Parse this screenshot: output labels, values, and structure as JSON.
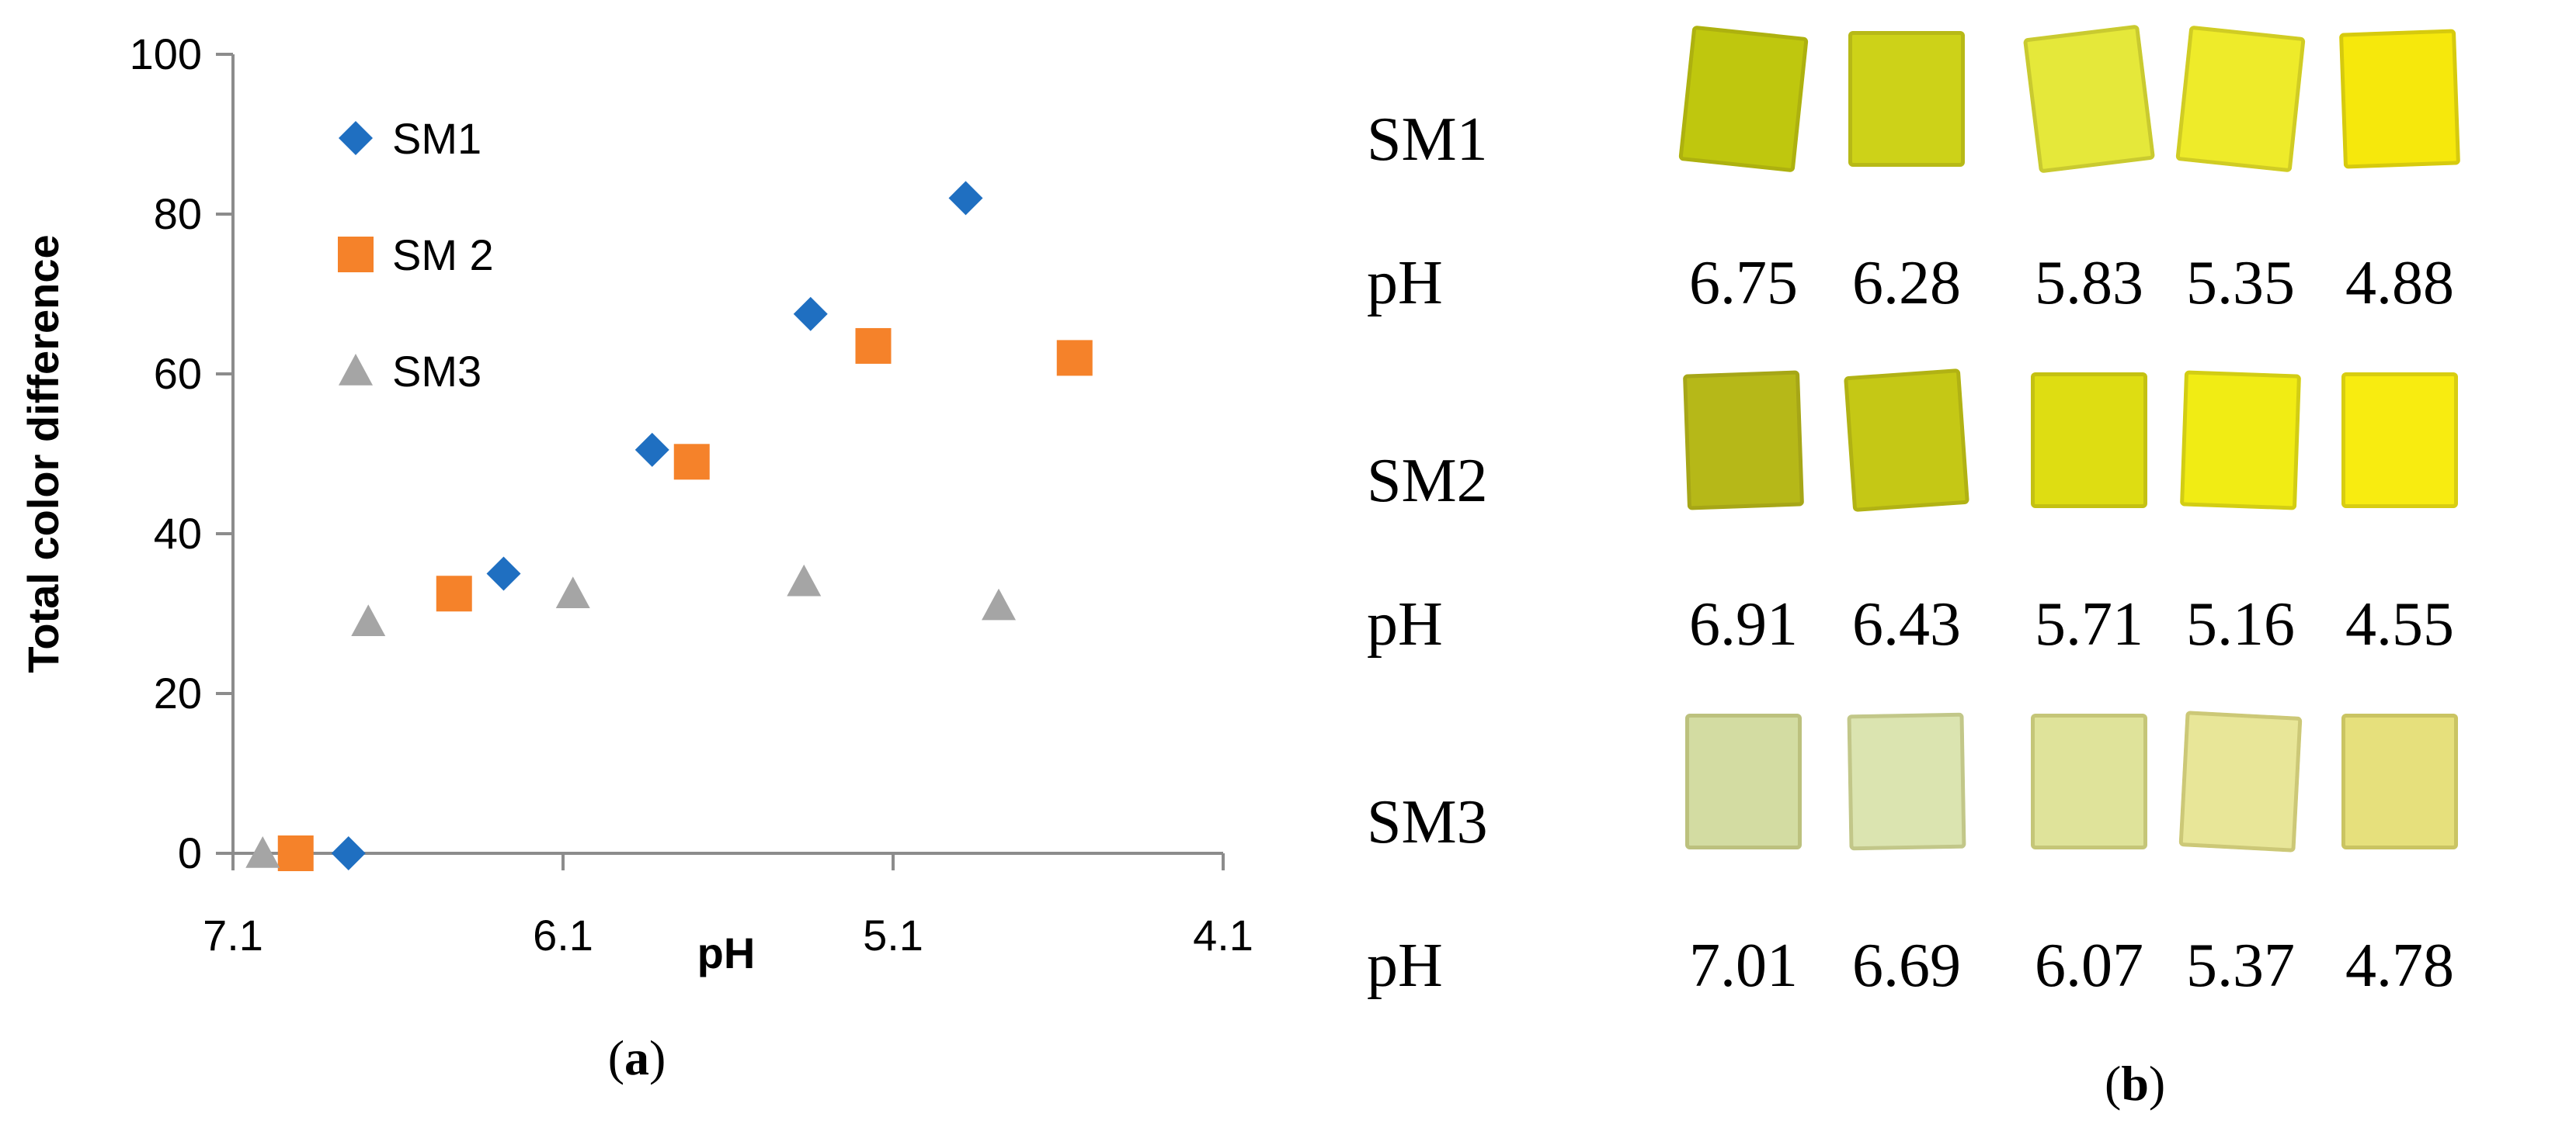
{
  "chart_data": {
    "type": "scatter",
    "title": "",
    "xlabel": "pH",
    "ylabel": "Total color difference",
    "xlim": [
      7.1,
      4.1
    ],
    "ylim": [
      0,
      100
    ],
    "x_reversed": true,
    "xticks": [
      "7.1",
      "6.1",
      "5.1",
      "4.1"
    ],
    "yticks": [
      "0",
      "20",
      "40",
      "60",
      "80",
      "100"
    ],
    "grid": false,
    "legend_position": "top-left",
    "series": [
      {
        "name": "SM1",
        "marker": "diamond",
        "color": "#1f6fc1",
        "x": [
          6.75,
          6.28,
          5.83,
          5.35,
          4.88
        ],
        "y": [
          0,
          35,
          50.5,
          67.5,
          82
        ]
      },
      {
        "name": "SM 2",
        "marker": "square",
        "color": "#f5822a",
        "x": [
          6.91,
          6.43,
          5.71,
          5.16,
          4.55
        ],
        "y": [
          0,
          32.5,
          49,
          63.5,
          62
        ]
      },
      {
        "name": "SM3",
        "marker": "triangle",
        "color": "#a5a5a5",
        "x": [
          7.01,
          6.69,
          6.07,
          5.37,
          4.78
        ],
        "y": [
          0,
          29,
          32.5,
          34,
          31
        ]
      }
    ]
  },
  "panel_a_caption": {
    "open": "(",
    "letter": "a",
    "close": ")"
  },
  "panel_b_caption": {
    "open": "(",
    "letter": "b",
    "close": ")"
  },
  "photo_panel": {
    "ph_label": "pH",
    "rows": [
      {
        "label": "SM1",
        "ph_values": [
          "6.75",
          "6.28",
          "5.83",
          "5.35",
          "4.88"
        ],
        "swatch_colors": [
          "#bfc70e",
          "#cdd218",
          "#e5e83a",
          "#eeeb2a",
          "#f6e80c"
        ]
      },
      {
        "label": "SM2",
        "ph_values": [
          "6.91",
          "6.43",
          "5.71",
          "5.16",
          "4.55"
        ],
        "swatch_colors": [
          "#b6b818",
          "#c5c815",
          "#dedd12",
          "#f1ec14",
          "#f8ec10"
        ]
      },
      {
        "label": "SM3",
        "ph_values": [
          "7.01",
          "6.69",
          "6.07",
          "5.37",
          "4.78"
        ],
        "swatch_colors": [
          "#d3dca2",
          "#dbe4b0",
          "#dfe39a",
          "#e8e698",
          "#e6e07c"
        ]
      }
    ]
  }
}
